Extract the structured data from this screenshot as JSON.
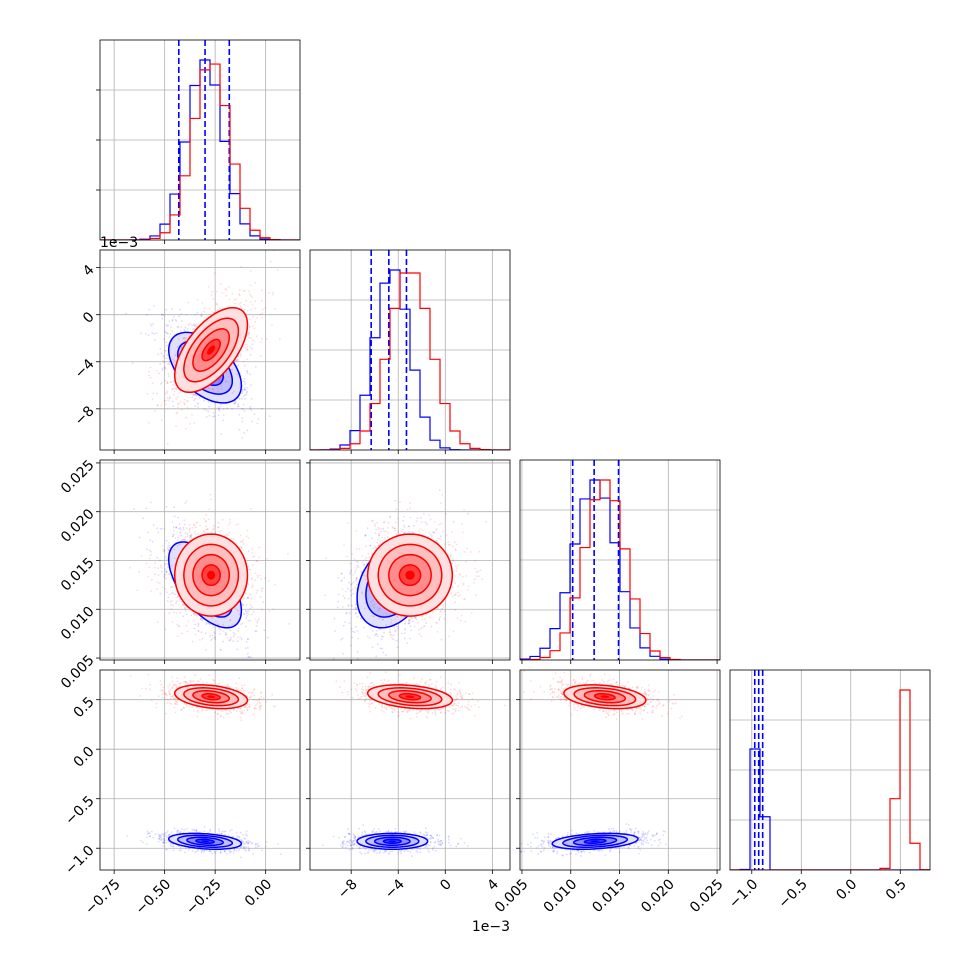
{
  "chart_data": {
    "type": "corner",
    "params": [
      "p1",
      "p2",
      "p3",
      "p4"
    ],
    "param_labels": [
      "",
      "",
      "",
      ""
    ],
    "ranges": [
      [
        -0.82,
        0.17
      ],
      [
        -0.0115,
        0.0055
      ],
      [
        0.0048,
        0.0253
      ],
      [
        -1.22,
        0.8
      ]
    ],
    "ticks": [
      {
        "values": [
          -0.75,
          -0.5,
          -0.25,
          0.0
        ],
        "labels": [
          "−0.75",
          "−0.50",
          "−0.25",
          "0.00"
        ]
      },
      {
        "values": [
          -0.008,
          -0.004,
          0.0,
          0.004
        ],
        "labels": [
          "−8",
          "−4",
          "0",
          "4"
        ],
        "offset_text": "1e−3"
      },
      {
        "values": [
          0.005,
          0.01,
          0.015,
          0.02,
          0.025
        ],
        "labels": [
          "0.005",
          "0.010",
          "0.015",
          "0.020",
          "0.025"
        ]
      },
      {
        "values": [
          -1.0,
          -0.5,
          0.0,
          0.5
        ],
        "labels": [
          "−1.0",
          "−0.5",
          "0.0",
          "0.5"
        ]
      }
    ],
    "grid": true,
    "series": [
      {
        "color": "#0000ff",
        "means": [
          -0.3,
          -0.0045,
          0.0125,
          -0.93
        ],
        "sds": [
          0.09,
          0.0015,
          0.0022,
          0.04
        ],
        "quantile_lines": [
          [
            -0.43,
            -0.3,
            -0.18
          ],
          [
            -0.0063,
            -0.0048,
            -0.0033
          ],
          [
            0.0102,
            0.0124,
            0.0149
          ],
          [
            -0.97,
            -0.93,
            -0.89
          ]
        ],
        "correlations": [
          [
            0,
            1,
            -0.5
          ],
          [
            0,
            2,
            -0.6
          ],
          [
            1,
            2,
            0.3
          ],
          [
            0,
            3,
            -0.3
          ],
          [
            1,
            3,
            0.0
          ],
          [
            2,
            3,
            0.3
          ]
        ]
      },
      {
        "color": "#ff0000",
        "means": [
          -0.27,
          -0.003,
          0.0135,
          0.53
        ],
        "sds": [
          0.09,
          0.0018,
          0.0021,
          0.06
        ],
        "quantile_lines": [],
        "correlations": [
          [
            0,
            1,
            0.6
          ],
          [
            0,
            2,
            0.0
          ],
          [
            1,
            2,
            0.0
          ],
          [
            0,
            3,
            -0.3
          ],
          [
            1,
            3,
            -0.3
          ],
          [
            2,
            3,
            -0.3
          ]
        ]
      }
    ]
  }
}
